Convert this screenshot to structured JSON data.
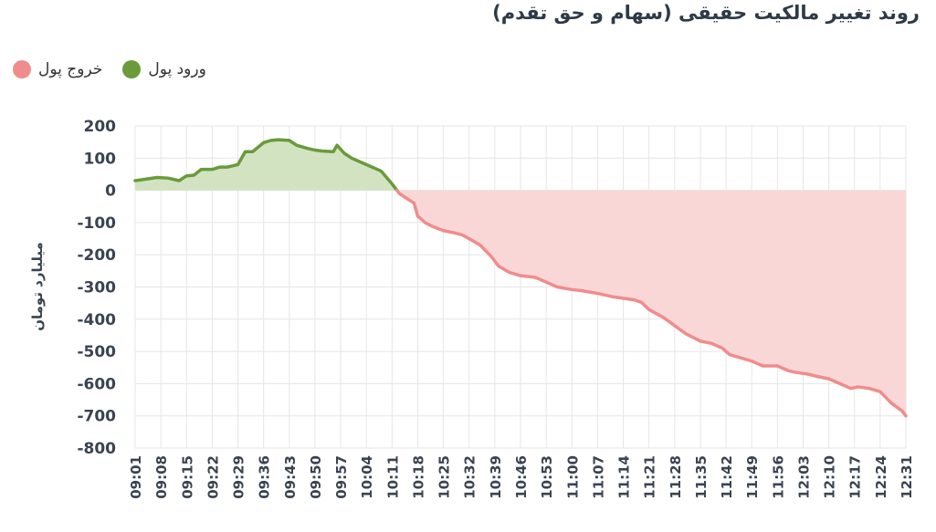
{
  "chart_data": {
    "type": "area",
    "title": "روند تغییر مالکیت حقیقی (سهام و حق تقدم)",
    "ylabel": "میلیارد تومان",
    "xlabel": "",
    "ylim": [
      -800,
      200
    ],
    "y_ticks": [
      200,
      100,
      0,
      -100,
      -200,
      -300,
      -400,
      -500,
      -600,
      -700,
      -800
    ],
    "grid": true,
    "legend_position": "top-left",
    "legend": [
      {
        "label": "ورود پول",
        "color": "#6a9a3a",
        "name": "inflow"
      },
      {
        "label": "خروج پول",
        "color": "#f08c8c",
        "name": "outflow"
      }
    ],
    "colors": {
      "positive_line": "#6a9a3a",
      "positive_fill": "#d2e3c2",
      "negative_line": "#f08c8c",
      "negative_fill": "#f9d7d7"
    },
    "x_ticks": [
      "09:01",
      "09:08",
      "09:15",
      "09:22",
      "09:29",
      "09:36",
      "09:43",
      "09:50",
      "09:57",
      "10:04",
      "10:11",
      "10:18",
      "10:25",
      "10:32",
      "10:39",
      "10:46",
      "10:53",
      "11:00",
      "11:07",
      "11:14",
      "11:21",
      "11:28",
      "11:35",
      "11:42",
      "11:49",
      "11:56",
      "12:03",
      "12:10",
      "12:17",
      "12:24",
      "12:31"
    ],
    "series": [
      {
        "x": [
          "09:01",
          "09:04",
          "09:07",
          "09:10",
          "09:13",
          "09:15",
          "09:17",
          "09:19",
          "09:22",
          "09:24",
          "09:26",
          "09:29",
          "09:31",
          "09:33",
          "09:36",
          "09:38",
          "09:40",
          "09:43",
          "09:45",
          "09:48",
          "09:50",
          "09:52",
          "09:55",
          "09:56",
          "09:58",
          "10:00",
          "10:03",
          "10:06",
          "10:08",
          "10:11",
          "10:13",
          "10:15",
          "10:17",
          "10:18",
          "10:20",
          "10:22",
          "10:25",
          "10:28",
          "10:30",
          "10:32",
          "10:35",
          "10:38",
          "10:40",
          "10:43",
          "10:46",
          "10:50",
          "10:53",
          "10:56",
          "11:00",
          "11:03",
          "11:07",
          "11:11",
          "11:14",
          "11:17",
          "11:19",
          "11:21",
          "11:25",
          "11:28",
          "11:31",
          "11:35",
          "11:38",
          "11:41",
          "11:43",
          "11:46",
          "11:49",
          "11:52",
          "11:54",
          "11:56",
          "11:59",
          "12:01",
          "12:04",
          "12:07",
          "12:10",
          "12:13",
          "12:16",
          "12:18",
          "12:21",
          "12:24",
          "12:27",
          "12:30",
          "12:31"
        ],
        "values": [
          30,
          35,
          40,
          38,
          30,
          45,
          47,
          65,
          65,
          72,
          72,
          80,
          120,
          120,
          148,
          155,
          157,
          155,
          140,
          130,
          125,
          122,
          120,
          140,
          115,
          100,
          85,
          70,
          60,
          20,
          -10,
          -25,
          -40,
          -80,
          -100,
          -112,
          -125,
          -132,
          -138,
          -150,
          -170,
          -205,
          -235,
          -255,
          -265,
          -270,
          -285,
          -300,
          -308,
          -312,
          -320,
          -330,
          -335,
          -340,
          -348,
          -370,
          -395,
          -420,
          -445,
          -468,
          -475,
          -490,
          -510,
          -520,
          -530,
          -545,
          -545,
          -545,
          -560,
          -565,
          -570,
          -578,
          -585,
          -600,
          -615,
          -610,
          -615,
          -625,
          -660,
          -685,
          -700
        ]
      }
    ]
  }
}
